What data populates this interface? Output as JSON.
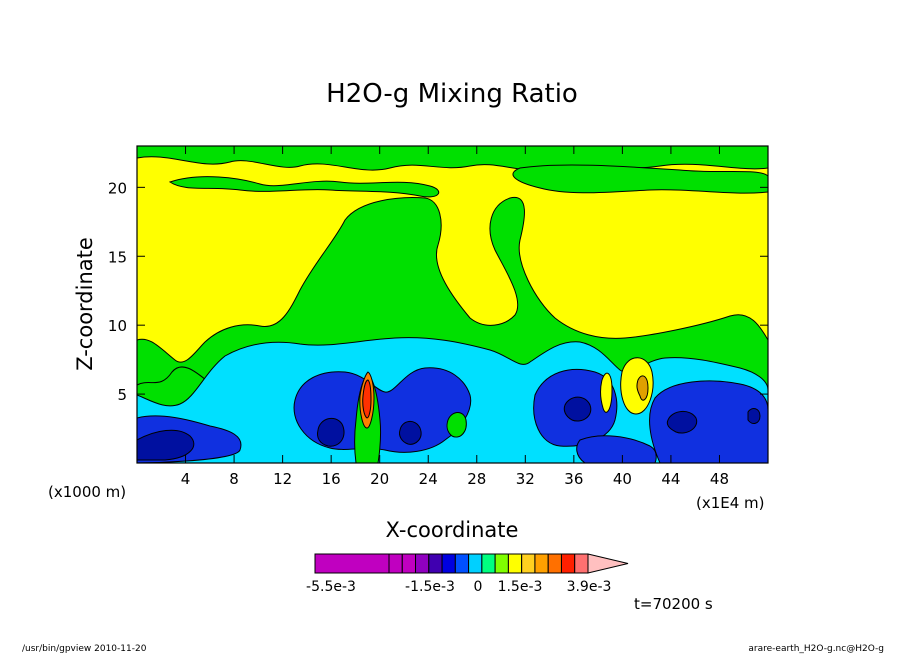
{
  "chart_data": {
    "type": "heatmap",
    "title": "H2O-g Mixing Ratio",
    "xlabel": "X-coordinate",
    "ylabel": "Z-coordinate",
    "x_unit_label": "(x1000 m)",
    "x_scale_label": "(x1E4 m)",
    "xlim": [
      0,
      52
    ],
    "ylim": [
      0,
      23
    ],
    "xticks": [
      4,
      8,
      12,
      16,
      20,
      24,
      28,
      32,
      36,
      40,
      44,
      48
    ],
    "yticks": [
      5,
      10,
      15,
      20
    ],
    "colorbar": {
      "levels": [
        -0.0055,
        -0.0045,
        -0.0035,
        -0.0025,
        -0.0015,
        -0.001,
        -0.0005,
        0,
        0.0005,
        0.001,
        0.0015,
        0.002,
        0.0025,
        0.003,
        0.0039
      ],
      "colors": [
        "#c000c0",
        "#c000c0",
        "#c000c0",
        "#9000c0",
        "#4000b0",
        "#0000e0",
        "#0050ff",
        "#00d0ff",
        "#00ff80",
        "#80ff00",
        "#ffff00",
        "#ffd020",
        "#ffa000",
        "#ff7000",
        "#ff2000",
        "#ff7070",
        "#ffc0c0"
      ],
      "labels": [
        {
          "text": "-5.5e-3",
          "value": -0.0055
        },
        {
          "text": "-1.5e-3",
          "value": -0.0015
        },
        {
          "text": "0",
          "value": 0
        },
        {
          "text": "1.5e-3",
          "value": 0.0015
        },
        {
          "text": "3.9e-3",
          "value": 0.0039
        }
      ]
    },
    "time_label": "t=70200 s"
  },
  "footer": {
    "program": "/usr/bin/gpview   2010-11-20",
    "file": "arare-earth_H2O-g.nc@H2O-g"
  },
  "colors": {
    "yellow": "#ffff00",
    "green": "#00e000",
    "lightgreen": "#40f060",
    "cyan": "#00e0ff",
    "blue": "#1030e0",
    "darkblue": "#0010a0",
    "orange": "#ff8000",
    "red": "#ff3000",
    "darkorange": "#e0a000"
  }
}
